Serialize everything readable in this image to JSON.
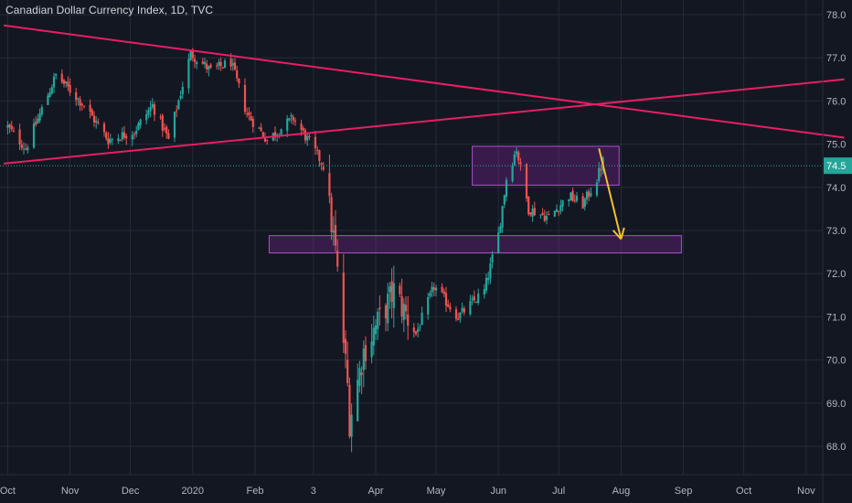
{
  "chart_data": {
    "type": "candlestick",
    "title": "Canadian Dollar Currency Index, 1D, TVC",
    "x_tick_labels": [
      "Oct",
      "Nov",
      "Dec",
      "2020",
      "Feb",
      "3",
      "Apr",
      "May",
      "Jun",
      "Jul",
      "Aug",
      "Sep",
      "Oct",
      "Nov"
    ],
    "y_tick_labels": [
      "68.0",
      "69.0",
      "70.0",
      "71.0",
      "72.0",
      "73.0",
      "74.0",
      "75.0",
      "76.0",
      "77.0",
      "78.0"
    ],
    "ylim": [
      67.6,
      78.3
    ],
    "last_price": "74.5",
    "grid": true,
    "colors": {
      "background": "#131722",
      "grid": "#262b3a",
      "up": "#26a69a",
      "down": "#ef5350",
      "trendline": "#e91e63",
      "zone_fill": "#8e24aa",
      "arrow": "#f2c12e",
      "price_label": "#26a69a",
      "text": "#b2b5be"
    },
    "trendlines": [
      {
        "from": {
          "date": "2019-09-29",
          "price": 77.75
        },
        "to": {
          "date": "2020-11-20",
          "price": 75.15
        }
      },
      {
        "from": {
          "date": "2019-09-29",
          "price": 74.55
        },
        "to": {
          "date": "2020-11-20",
          "price": 76.5
        }
      }
    ],
    "zones": [
      {
        "from_date": "2020-05-19",
        "to_date": "2020-07-31",
        "price_low": 74.05,
        "price_high": 74.95
      },
      {
        "from_date": "2020-02-08",
        "to_date": "2020-08-31",
        "price_low": 72.48,
        "price_high": 72.88
      }
    ],
    "arrow": {
      "from": {
        "date": "2020-07-21",
        "price": 74.9
      },
      "to": {
        "date": "2020-08-01",
        "price": 72.8
      }
    },
    "ohlc_key_points": [
      {
        "date": "2019-10-01",
        "close": 75.4
      },
      {
        "date": "2019-10-10",
        "close": 74.9
      },
      {
        "date": "2019-10-25",
        "close": 76.6
      },
      {
        "date": "2019-11-08",
        "close": 75.9
      },
      {
        "date": "2019-11-20",
        "close": 75.1
      },
      {
        "date": "2019-12-03",
        "close": 75.3
      },
      {
        "date": "2019-12-12",
        "close": 75.9
      },
      {
        "date": "2019-12-20",
        "close": 75.1
      },
      {
        "date": "2019-12-31",
        "close": 77.1
      },
      {
        "date": "2020-01-10",
        "close": 76.7
      },
      {
        "date": "2020-01-20",
        "close": 76.9
      },
      {
        "date": "2020-01-28",
        "close": 75.7
      },
      {
        "date": "2020-02-07",
        "close": 75.1
      },
      {
        "date": "2020-02-20",
        "close": 75.6
      },
      {
        "date": "2020-03-01",
        "close": 74.9
      },
      {
        "date": "2020-03-06",
        "close": 74.5
      },
      {
        "date": "2020-03-12",
        "close": 72.5
      },
      {
        "date": "2020-03-18",
        "close": 69.4
      },
      {
        "date": "2020-03-19",
        "close": 68.6
      },
      {
        "date": "2020-03-26",
        "close": 70.2
      },
      {
        "date": "2020-04-10",
        "close": 71.6
      },
      {
        "date": "2020-04-21",
        "close": 70.6
      },
      {
        "date": "2020-04-30",
        "close": 71.7
      },
      {
        "date": "2020-05-12",
        "close": 71.0
      },
      {
        "date": "2020-05-25",
        "close": 71.6
      },
      {
        "date": "2020-06-01",
        "close": 72.9
      },
      {
        "date": "2020-06-05",
        "close": 74.2
      },
      {
        "date": "2020-06-10",
        "close": 74.9
      },
      {
        "date": "2020-06-16",
        "close": 73.5
      },
      {
        "date": "2020-06-26",
        "close": 73.3
      },
      {
        "date": "2020-07-06",
        "close": 73.8
      },
      {
        "date": "2020-07-13",
        "close": 73.6
      },
      {
        "date": "2020-07-20",
        "close": 74.2
      },
      {
        "date": "2020-07-23",
        "close": 74.6
      }
    ]
  }
}
